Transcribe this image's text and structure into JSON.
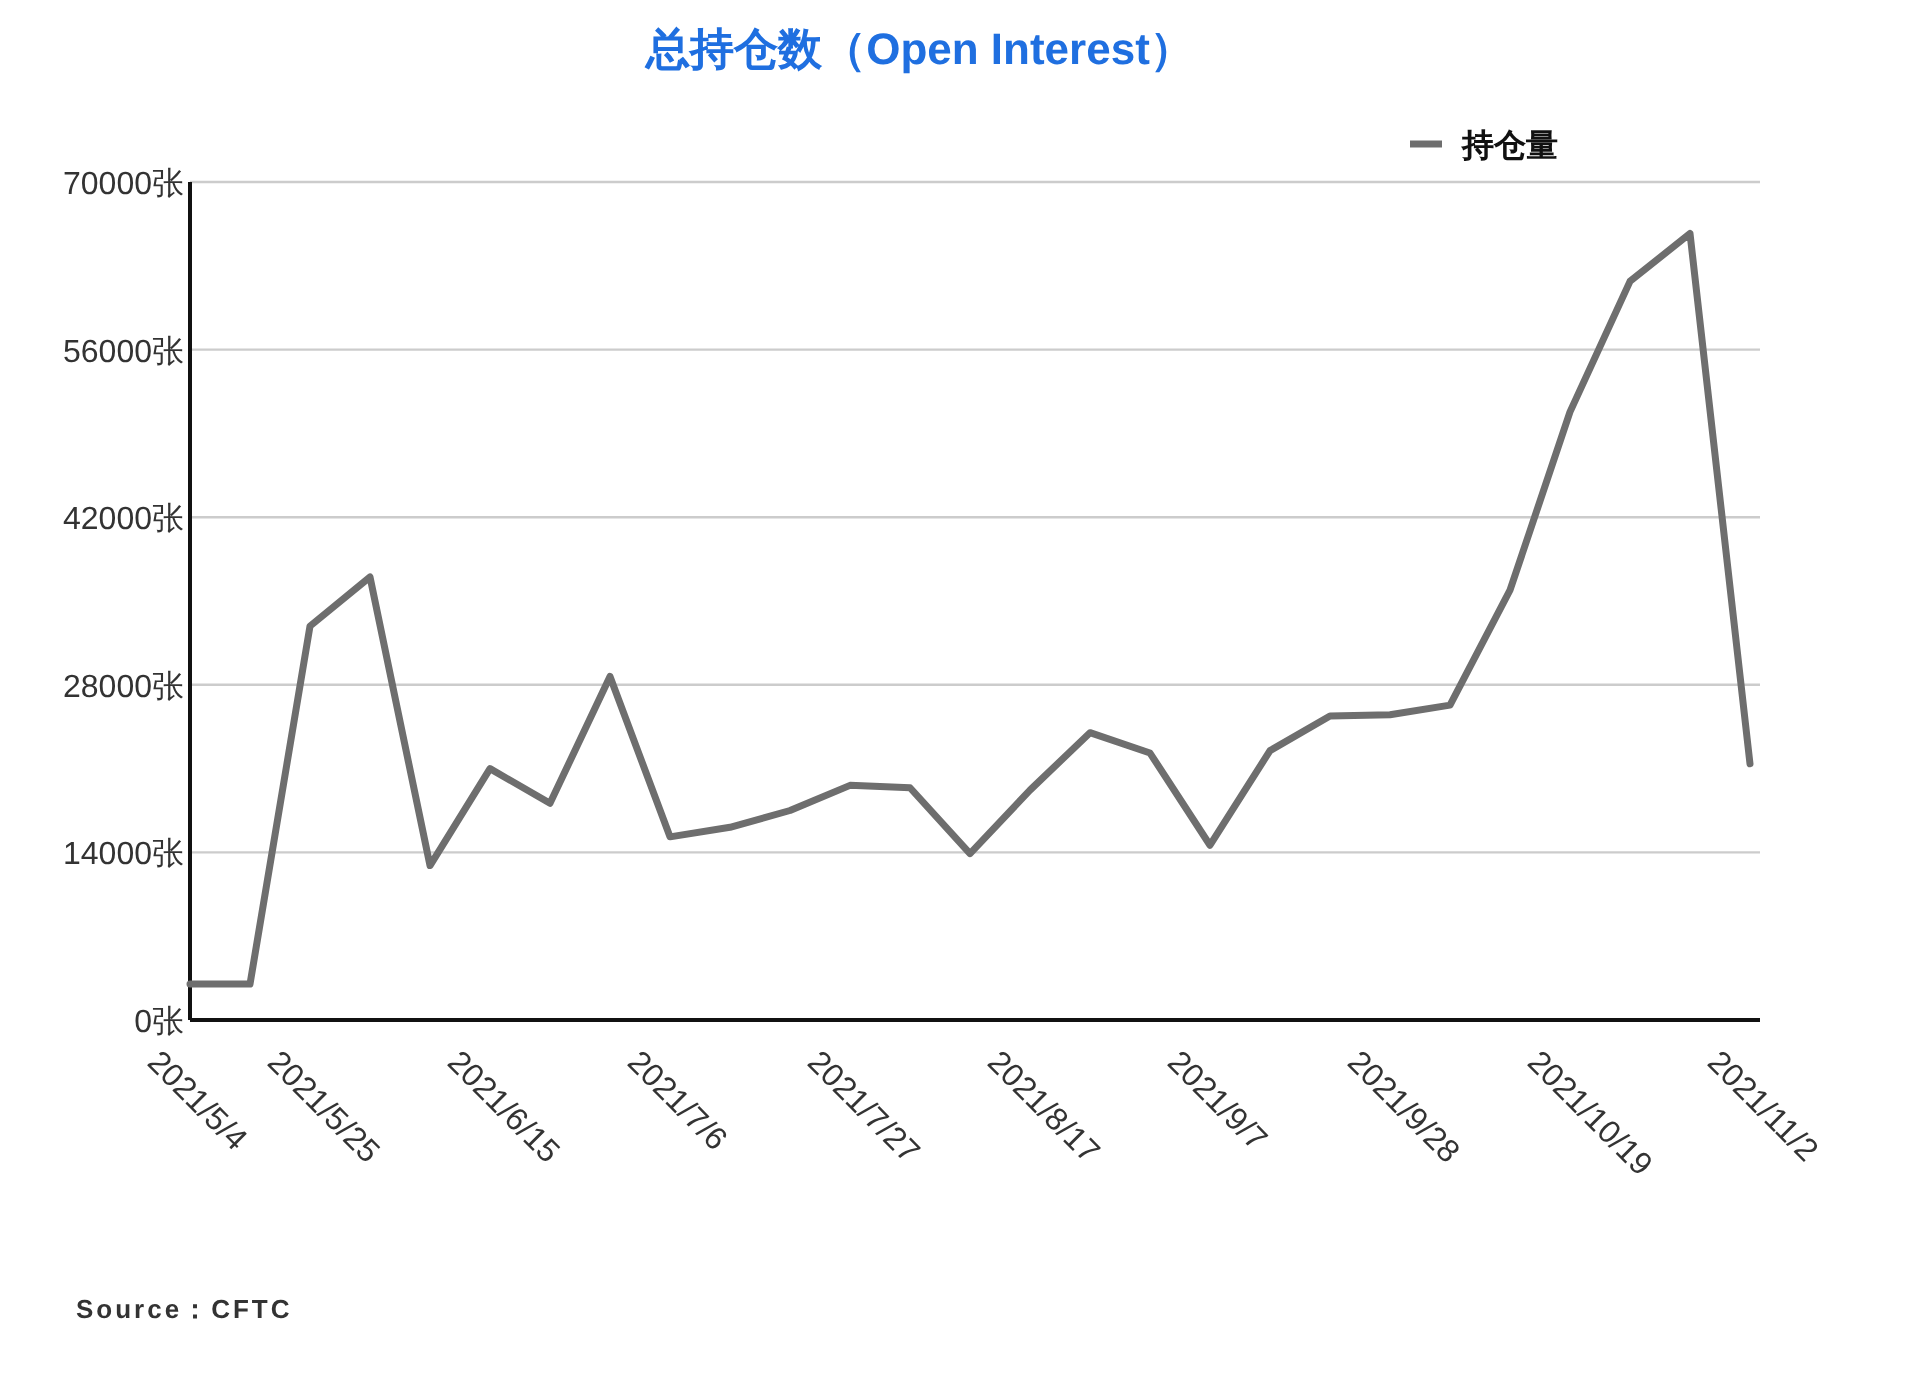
{
  "chart_data": {
    "type": "line",
    "title": "总持仓数（Open Interest）",
    "categories": [
      "2021/5/4",
      null,
      "2021/5/25",
      null,
      null,
      "2021/6/15",
      null,
      null,
      "2021/7/6",
      null,
      null,
      "2021/7/27",
      null,
      null,
      "2021/8/17",
      null,
      null,
      "2021/9/7",
      null,
      null,
      "2021/9/28",
      null,
      null,
      "2021/10/19",
      null,
      null,
      "2021/11/2"
    ],
    "series": [
      {
        "name": "持仓量",
        "color": "#6e6e6e",
        "values": [
          3000,
          3000,
          32900,
          37000,
          12900,
          21000,
          18100,
          28700,
          15300,
          16100,
          17500,
          19600,
          19400,
          13900,
          19200,
          24000,
          22300,
          14600,
          22500,
          25400,
          25500,
          26300,
          35900,
          50800,
          61700,
          65700,
          21400
        ]
      }
    ],
    "ylim": [
      0,
      70000
    ],
    "yticks": [
      {
        "value": 0,
        "label": "0张"
      },
      {
        "value": 14000,
        "label": "14000张"
      },
      {
        "value": 28000,
        "label": "28000张"
      },
      {
        "value": 42000,
        "label": "42000张"
      },
      {
        "value": 56000,
        "label": "56000张"
      },
      {
        "value": 70000,
        "label": "70000张"
      }
    ],
    "grid": "y",
    "legend": "top right",
    "marker": "none",
    "line_style": "solid",
    "annotations": [
      "Source：CFTC"
    ]
  }
}
